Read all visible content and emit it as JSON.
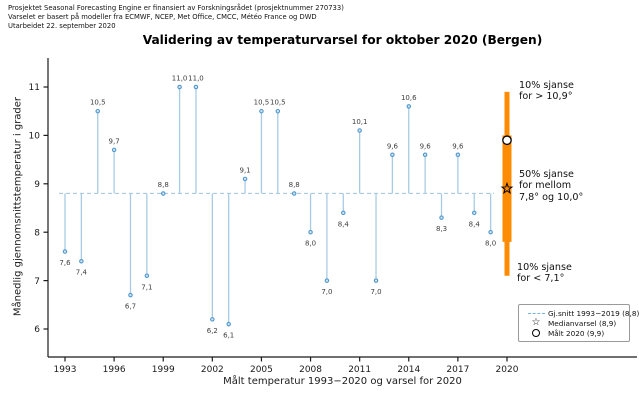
{
  "header": {
    "line1": "Prosjektet Seasonal Forecasting Engine er finansiert av Forskningsrådet (prosjektnummer 270733)",
    "line2": "Varselet er basert på modeller fra ECMWF, NCEP, Met Office, CMCC, Météo France og DWD",
    "line3": "Utarbeidet 22. september 2020"
  },
  "chart_data": {
    "type": "lollipop-stem",
    "title": "Validering av temperaturvarsel for oktober 2020 (Bergen)",
    "xlabel": "Målt temperatur 1993−2020 og varsel for 2020",
    "ylabel": "Månedlig gjennomsnittstemperatur i grader",
    "baseline_mean": 8.8,
    "ylim": [
      5.5,
      11.5
    ],
    "yticks": [
      6,
      7,
      8,
      9,
      10,
      11
    ],
    "xticks": [
      1993,
      1996,
      1999,
      2002,
      2005,
      2008,
      2011,
      2014,
      2017,
      2020
    ],
    "years": [
      1993,
      1994,
      1995,
      1996,
      1997,
      1998,
      1999,
      2000,
      2001,
      2002,
      2003,
      2004,
      2005,
      2006,
      2007,
      2008,
      2009,
      2010,
      2011,
      2012,
      2013,
      2014,
      2015,
      2016,
      2017,
      2018,
      2019
    ],
    "values": [
      7.6,
      7.4,
      10.5,
      9.7,
      6.7,
      7.1,
      8.8,
      11.0,
      11.0,
      6.2,
      6.1,
      9.1,
      10.5,
      10.5,
      8.8,
      8.0,
      7.0,
      8.4,
      10.1,
      7.0,
      9.6,
      10.6,
      9.6,
      8.3,
      9.6,
      8.4,
      8.0
    ],
    "point_labels": [
      "7,6",
      "7,4",
      "10,5",
      "9,7",
      "6,7",
      "7,1",
      "8,8",
      "11,0",
      "11,0",
      "6,2",
      "6,1",
      "9,1",
      "10,5",
      "10,5",
      "8,8",
      "8,0",
      "7,0",
      "8,4",
      "10,1",
      "7,0",
      "9,6",
      "10,6",
      "9,6",
      "8,3",
      "9,6",
      "8,4",
      "8,0"
    ],
    "forecast": {
      "year": 2020,
      "p10_low": 7.1,
      "p50_low": 7.8,
      "p50_high": 10.0,
      "p10_high": 10.9,
      "median": 8.9,
      "observed": 9.9
    },
    "annotations": [
      {
        "id": "high",
        "text": "10% sjanse\nfor > 10,9°"
      },
      {
        "id": "mid",
        "text": "50% sjanse\nfor mellom\n7,8° og 10,0°"
      },
      {
        "id": "low",
        "text": "10% sjanse\nfor < 7,1°"
      }
    ],
    "legend": [
      {
        "icon": "dashed-line",
        "label": "Gj.snitt 1993−2019 (8,8)"
      },
      {
        "icon": "star",
        "label": "Medianvarsel (8,9)"
      },
      {
        "icon": "circle",
        "label": "Målt 2020 (9,9)"
      }
    ],
    "colors": {
      "stem": "#a8cbe4",
      "marker_edge": "#4f97cd",
      "marker_fill": "#d4e7f4",
      "forecast_bar": "#ff8c00",
      "axis": "#1a1a1a",
      "value_label": "#3d3d3d"
    },
    "legend_position": "lower right",
    "grid": false
  }
}
